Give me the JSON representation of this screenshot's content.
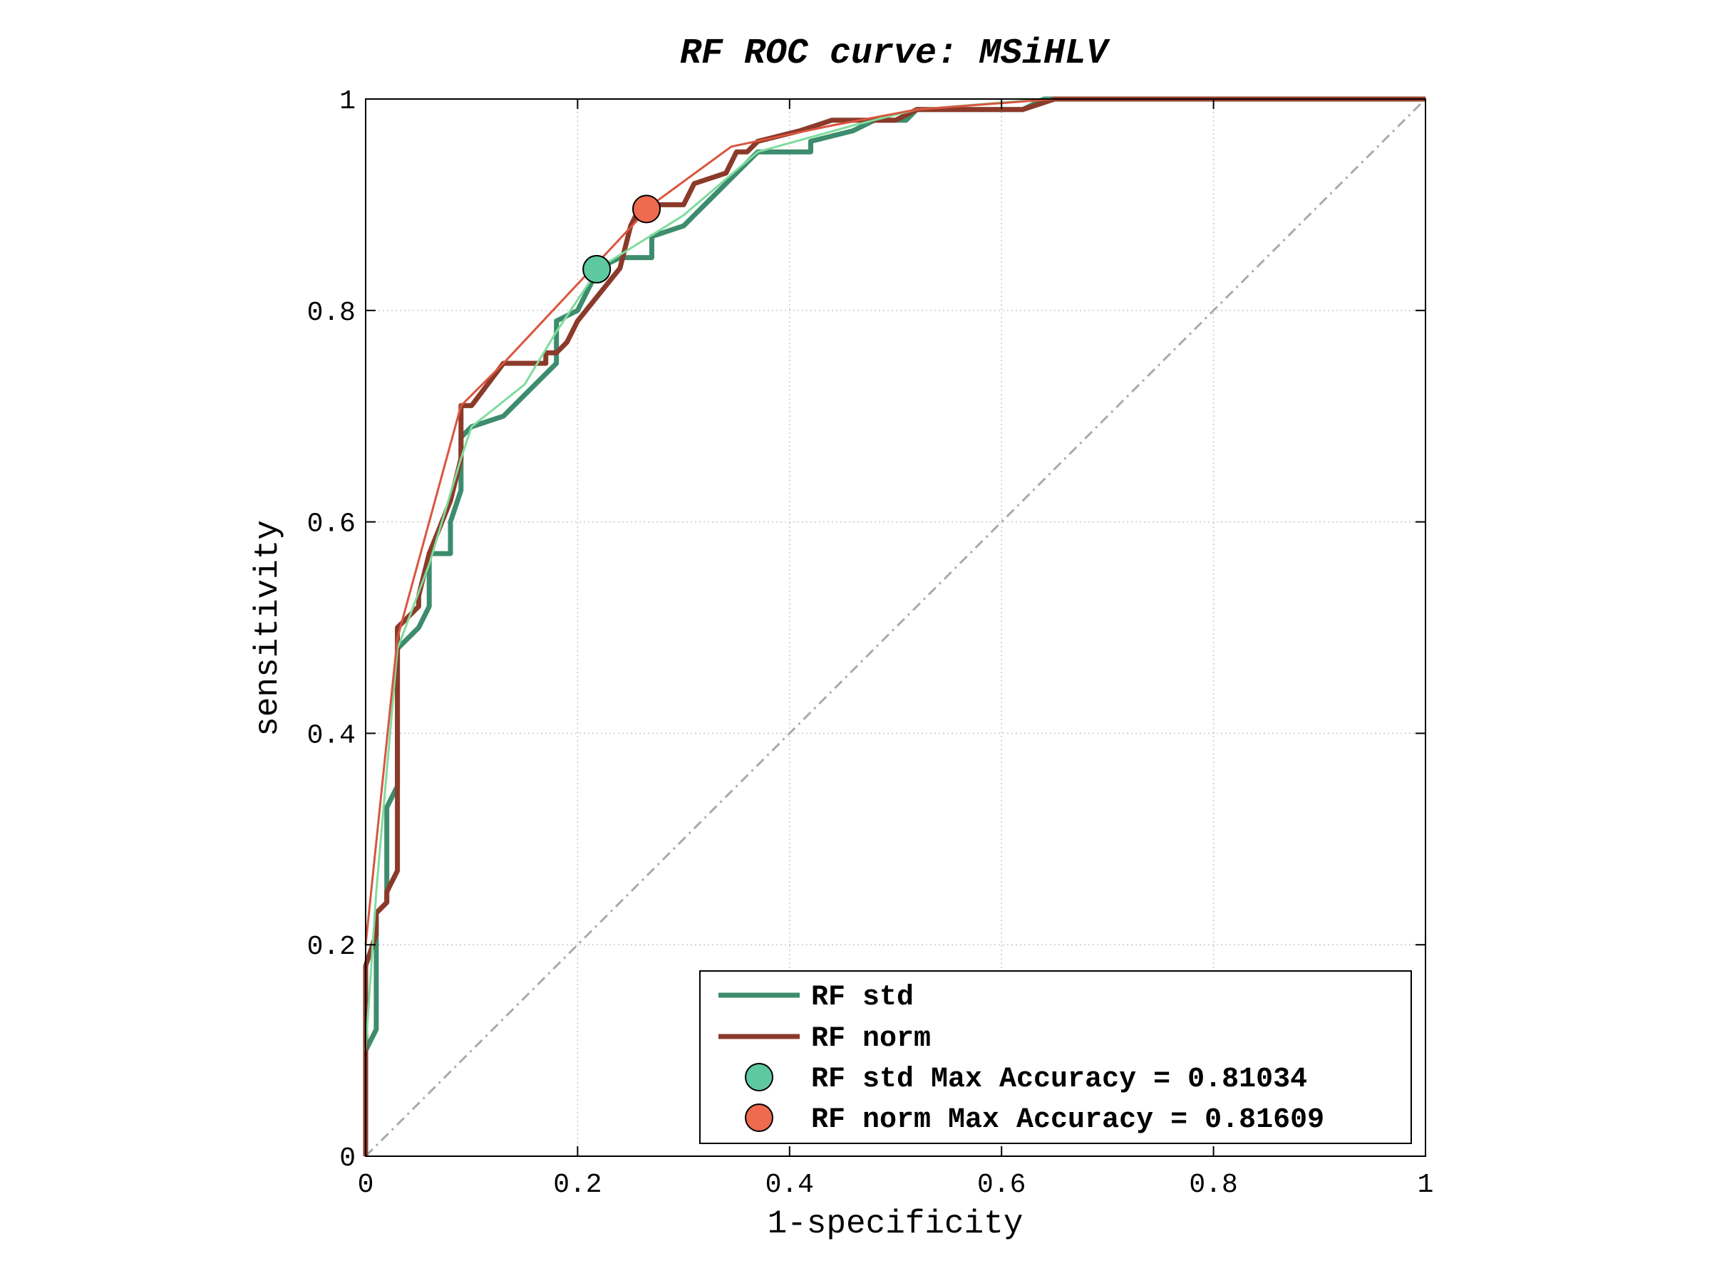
{
  "chart_data": {
    "type": "line",
    "title": "RF ROC curve: MSiHLV",
    "xlabel": "1-specificity",
    "ylabel": "sensitivity",
    "xlim": [
      0,
      1
    ],
    "ylim": [
      0,
      1
    ],
    "xticks": [
      "0",
      "0.2",
      "0.4",
      "0.6",
      "0.8",
      "1"
    ],
    "yticks": [
      "0",
      "0.2",
      "0.4",
      "0.6",
      "0.8",
      "1"
    ],
    "grid": true,
    "legend_position": "bottom-right",
    "colors": {
      "rf_std": "#3d8c6e",
      "rf_norm": "#8b3a2a",
      "rf_std_hull": "#7fdc9c",
      "rf_norm_hull": "#d9553e",
      "std_marker": "#5ec9a0",
      "norm_marker": "#ef6a4f",
      "chance_line": "#aaaaaa",
      "grid": "#c8c8c8"
    },
    "legend": [
      {
        "label": "RF std",
        "kind": "line",
        "color": "#3d8c6e"
      },
      {
        "label": "RF norm",
        "kind": "line",
        "color": "#8b3a2a"
      },
      {
        "label": "RF std Max Accuracy = 0.81034",
        "kind": "marker",
        "color": "#5ec9a0"
      },
      {
        "label": "RF norm Max Accuracy = 0.81609",
        "kind": "marker",
        "color": "#ef6a4f"
      }
    ],
    "series": [
      {
        "name": "RF std",
        "points": [
          [
            0,
            0
          ],
          [
            0,
            0.1
          ],
          [
            0.01,
            0.12
          ],
          [
            0.01,
            0.23
          ],
          [
            0.02,
            0.24
          ],
          [
            0.02,
            0.33
          ],
          [
            0.03,
            0.35
          ],
          [
            0.03,
            0.48
          ],
          [
            0.05,
            0.5
          ],
          [
            0.06,
            0.52
          ],
          [
            0.06,
            0.57
          ],
          [
            0.08,
            0.57
          ],
          [
            0.08,
            0.6
          ],
          [
            0.09,
            0.63
          ],
          [
            0.09,
            0.68
          ],
          [
            0.1,
            0.69
          ],
          [
            0.13,
            0.7
          ],
          [
            0.15,
            0.72
          ],
          [
            0.18,
            0.75
          ],
          [
            0.18,
            0.79
          ],
          [
            0.2,
            0.8
          ],
          [
            0.21,
            0.82
          ],
          [
            0.22,
            0.84
          ],
          [
            0.24,
            0.85
          ],
          [
            0.27,
            0.85
          ],
          [
            0.27,
            0.87
          ],
          [
            0.3,
            0.88
          ],
          [
            0.31,
            0.89
          ],
          [
            0.32,
            0.9
          ],
          [
            0.34,
            0.92
          ],
          [
            0.37,
            0.95
          ],
          [
            0.42,
            0.95
          ],
          [
            0.42,
            0.96
          ],
          [
            0.46,
            0.97
          ],
          [
            0.48,
            0.98
          ],
          [
            0.51,
            0.98
          ],
          [
            0.52,
            0.99
          ],
          [
            0.62,
            0.99
          ],
          [
            0.64,
            1.0
          ],
          [
            1,
            1
          ]
        ]
      },
      {
        "name": "RF norm",
        "points": [
          [
            0,
            0
          ],
          [
            0,
            0.18
          ],
          [
            0.01,
            0.21
          ],
          [
            0.01,
            0.23
          ],
          [
            0.02,
            0.24
          ],
          [
            0.02,
            0.25
          ],
          [
            0.03,
            0.27
          ],
          [
            0.03,
            0.5
          ],
          [
            0.05,
            0.52
          ],
          [
            0.05,
            0.53
          ],
          [
            0.06,
            0.57
          ],
          [
            0.08,
            0.62
          ],
          [
            0.09,
            0.66
          ],
          [
            0.09,
            0.71
          ],
          [
            0.1,
            0.71
          ],
          [
            0.13,
            0.75
          ],
          [
            0.17,
            0.75
          ],
          [
            0.17,
            0.76
          ],
          [
            0.18,
            0.76
          ],
          [
            0.19,
            0.77
          ],
          [
            0.2,
            0.79
          ],
          [
            0.24,
            0.84
          ],
          [
            0.25,
            0.88
          ],
          [
            0.26,
            0.9
          ],
          [
            0.3,
            0.9
          ],
          [
            0.31,
            0.92
          ],
          [
            0.34,
            0.93
          ],
          [
            0.35,
            0.95
          ],
          [
            0.36,
            0.95
          ],
          [
            0.37,
            0.96
          ],
          [
            0.41,
            0.97
          ],
          [
            0.44,
            0.98
          ],
          [
            0.5,
            0.98
          ],
          [
            0.52,
            0.99
          ],
          [
            0.62,
            0.99
          ],
          [
            0.65,
            1.0
          ],
          [
            1,
            1
          ]
        ]
      }
    ],
    "hulls": [
      {
        "ref": "RF std",
        "points": [
          [
            0,
            0.1
          ],
          [
            0.01,
            0.25
          ],
          [
            0.03,
            0.48
          ],
          [
            0.06,
            0.56
          ],
          [
            0.09,
            0.66
          ],
          [
            0.1,
            0.69
          ],
          [
            0.15,
            0.73
          ],
          [
            0.18,
            0.78
          ],
          [
            0.22,
            0.84
          ],
          [
            0.3,
            0.89
          ],
          [
            0.37,
            0.95
          ],
          [
            0.46,
            0.975
          ],
          [
            0.52,
            0.99
          ],
          [
            0.64,
            1.0
          ],
          [
            1,
            1
          ]
        ]
      },
      {
        "ref": "RF norm",
        "points": [
          [
            0,
            0.2
          ],
          [
            0.03,
            0.49
          ],
          [
            0.09,
            0.71
          ],
          [
            0.13,
            0.75
          ],
          [
            0.27,
            0.9
          ],
          [
            0.345,
            0.955
          ],
          [
            0.44,
            0.975
          ],
          [
            0.52,
            0.99
          ],
          [
            0.65,
            1.0
          ],
          [
            1,
            1
          ]
        ]
      }
    ],
    "chance_line": [
      [
        0,
        0
      ],
      [
        1,
        1
      ]
    ],
    "markers": [
      {
        "ref": "RF std Max Accuracy",
        "x": 0.218,
        "y": 0.839
      },
      {
        "ref": "RF norm Max Accuracy",
        "x": 0.265,
        "y": 0.896
      }
    ]
  }
}
